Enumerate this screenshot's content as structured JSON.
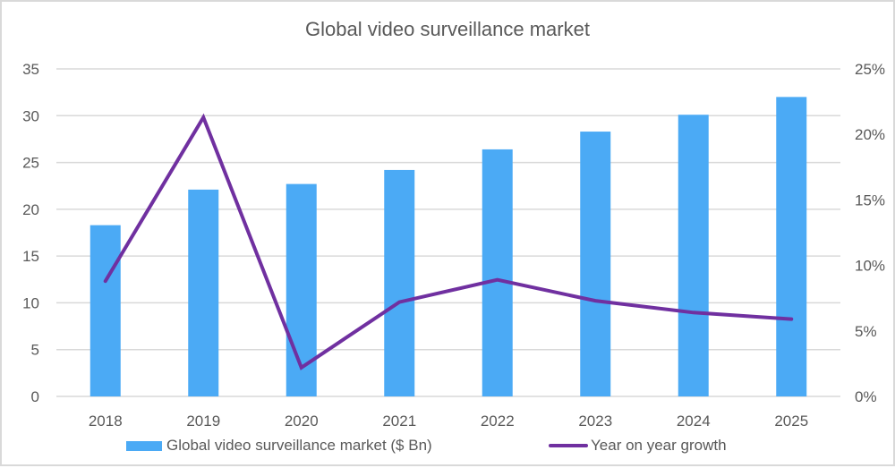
{
  "title": "Global video surveillance market",
  "colors": {
    "bar": "#4baaf5",
    "line": "#7030a0",
    "grid": "#d9d9d9",
    "text": "#595959"
  },
  "legend": {
    "bar_label": "Global video surveillance market ($ Bn)",
    "line_label": "Year on year growth"
  },
  "axes": {
    "left_ticks": [
      "0",
      "5",
      "10",
      "15",
      "20",
      "25",
      "30",
      "35"
    ],
    "right_ticks": [
      "0%",
      "5%",
      "10%",
      "15%",
      "20%",
      "25%"
    ]
  },
  "chart_data": {
    "type": "bar",
    "title": "Global video surveillance market",
    "categories": [
      "2018",
      "2019",
      "2020",
      "2021",
      "2022",
      "2023",
      "2024",
      "2025"
    ],
    "series": [
      {
        "name": "Global video surveillance market ($ Bn)",
        "type": "bar",
        "axis": "left",
        "values": [
          18.3,
          22.1,
          22.7,
          24.2,
          26.4,
          28.3,
          30.1,
          32.0
        ]
      },
      {
        "name": "Year on year growth",
        "type": "line",
        "axis": "right",
        "unit": "%",
        "values": [
          8.8,
          21.3,
          2.2,
          7.2,
          8.9,
          7.3,
          6.4,
          5.9
        ]
      }
    ],
    "xlabel": "",
    "ylabel": "",
    "y2label": "",
    "ylim": [
      0,
      35
    ],
    "y2lim": [
      0,
      25
    ],
    "grid": true,
    "legend_position": "bottom"
  }
}
